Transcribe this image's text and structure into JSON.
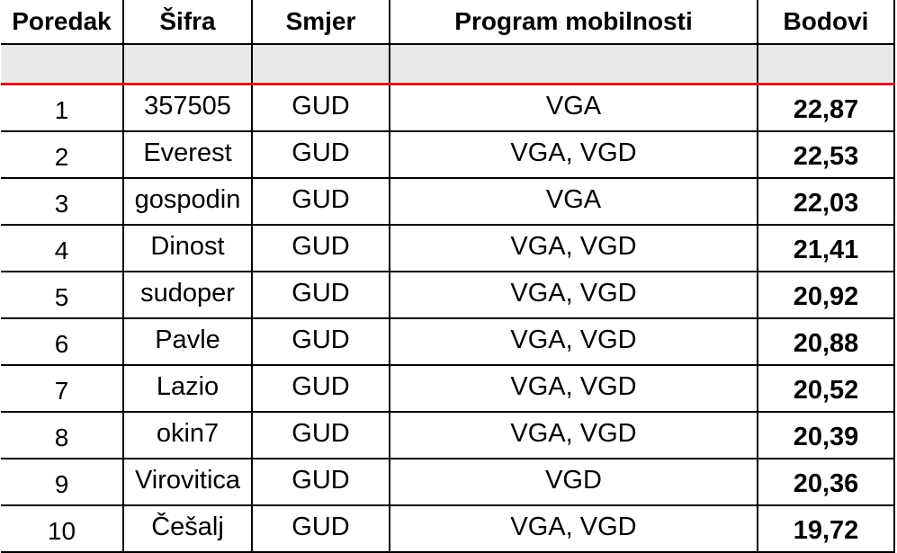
{
  "table": {
    "headers": [
      "Poredak",
      "Šifra",
      "Smjer",
      "Program mobilnosti",
      "Bodovi"
    ],
    "rows": [
      {
        "rank": "1",
        "code": "357505",
        "direction": "GUD",
        "program": "VGA",
        "points": "22,87"
      },
      {
        "rank": "2",
        "code": "Everest",
        "direction": "GUD",
        "program": "VGA, VGD",
        "points": "22,53"
      },
      {
        "rank": "3",
        "code": "gospodin",
        "direction": "GUD",
        "program": "VGA",
        "points": "22,03"
      },
      {
        "rank": "4",
        "code": "Dinost",
        "direction": "GUD",
        "program": "VGA, VGD",
        "points": "21,41"
      },
      {
        "rank": "5",
        "code": "sudoper",
        "direction": "GUD",
        "program": "VGA, VGD",
        "points": "20,92"
      },
      {
        "rank": "6",
        "code": "Pavle",
        "direction": "GUD",
        "program": "VGA, VGD",
        "points": "20,88"
      },
      {
        "rank": "7",
        "code": "Lazio",
        "direction": "GUD",
        "program": "VGA, VGD",
        "points": "20,52"
      },
      {
        "rank": "8",
        "code": "okin7",
        "direction": "GUD",
        "program": "VGA, VGD",
        "points": "20,39"
      },
      {
        "rank": "9",
        "code": "Virovitica",
        "direction": "GUD",
        "program": "VGD",
        "points": "20,36"
      },
      {
        "rank": "10",
        "code": "Češalj",
        "direction": "GUD",
        "program": "VGA, VGD",
        "points": "19,72"
      }
    ]
  },
  "colors": {
    "header_separator": "#d9191f",
    "filter_row_background": "#e9e9e9"
  }
}
